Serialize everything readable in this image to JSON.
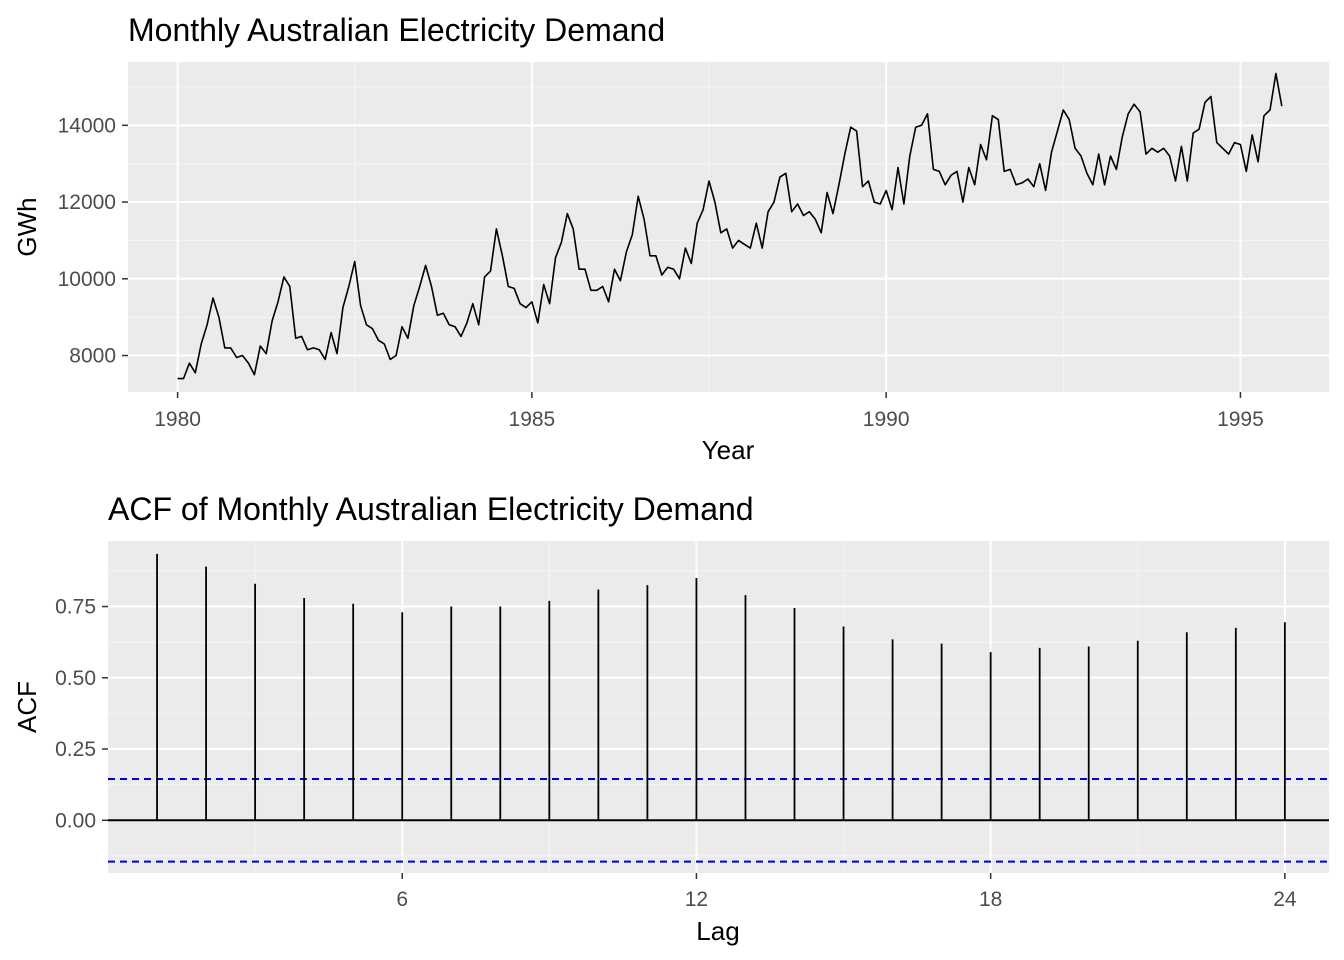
{
  "chart_data": [
    {
      "type": "line",
      "title": "Monthly Australian Electricity Demand",
      "xlabel": "Year",
      "ylabel": "GWh",
      "xlim": [
        1979.3,
        1996.25
      ],
      "ylim": [
        7050,
        15650
      ],
      "x_ticks": [
        1980,
        1985,
        1990,
        1995
      ],
      "x_tick_labels": [
        "1980",
        "1985",
        "1990",
        "1995"
      ],
      "y_ticks": [
        8000,
        10000,
        12000,
        14000
      ],
      "y_tick_labels": [
        "8000",
        "10000",
        "12000",
        "14000"
      ],
      "grid": true,
      "series": [
        {
          "start": 1980.0,
          "frequency": 12,
          "values": [
            7400,
            7400,
            7800,
            7550,
            8300,
            8800,
            9500,
            9000,
            8200,
            8200,
            7950,
            8000,
            7800,
            7500,
            8250,
            8050,
            8900,
            9400,
            10050,
            9800,
            8450,
            8500,
            8150,
            8200,
            8150,
            7900,
            8600,
            8050,
            9250,
            9800,
            10450,
            9300,
            8800,
            8700,
            8400,
            8300,
            7900,
            8000,
            8750,
            8450,
            9300,
            9800,
            10350,
            9800,
            9050,
            9100,
            8800,
            8750,
            8500,
            8850,
            9350,
            8800,
            10050,
            10200,
            11300,
            10600,
            9800,
            9750,
            9350,
            9250,
            9400,
            8850,
            9850,
            9350,
            10550,
            10950,
            11700,
            11300,
            10250,
            10250,
            9700,
            9700,
            9800,
            9400,
            10250,
            9950,
            10700,
            11150,
            12150,
            11550,
            10600,
            10600,
            10100,
            10300,
            10250,
            10000,
            10800,
            10400,
            11450,
            11800,
            12550,
            12000,
            11200,
            11300,
            10800,
            11000,
            10900,
            10800,
            11450,
            10800,
            11750,
            12000,
            12650,
            12750,
            11750,
            11950,
            11650,
            11750,
            11550,
            11200,
            12250,
            11700,
            12450,
            13250,
            13950,
            13850,
            12400,
            12550,
            12000,
            11950,
            12300,
            11800,
            12900,
            11950,
            13200,
            13950,
            14000,
            14300,
            12850,
            12800,
            12450,
            12700,
            12800,
            12000,
            12900,
            12450,
            13500,
            13100,
            14250,
            14150,
            12800,
            12850,
            12450,
            12500,
            12600,
            12400,
            13000,
            12300,
            13300,
            13850,
            14400,
            14150,
            13400,
            13200,
            12750,
            12450,
            13250,
            12450,
            13200,
            12850,
            13700,
            14300,
            14550,
            14350,
            13250,
            13400,
            13300,
            13400,
            13200,
            12550,
            13450,
            12550,
            13800,
            13900,
            14600,
            14750,
            13550,
            13400,
            13250,
            13550,
            13500,
            12800,
            13750,
            13050,
            14250,
            14400,
            15350,
            14500
          ]
        }
      ]
    },
    {
      "type": "bar",
      "title": "ACF of Monthly Australian Electricity Demand",
      "xlabel": "Lag",
      "ylabel": "ACF",
      "xlim": [
        0,
        24.9
      ],
      "ylim": [
        -0.185,
        0.98
      ],
      "x_ticks": [
        6,
        12,
        18,
        24
      ],
      "x_tick_labels": [
        "6",
        "12",
        "18",
        "24"
      ],
      "y_ticks": [
        0.0,
        0.25,
        0.5,
        0.75
      ],
      "y_tick_labels": [
        "0.00",
        "0.25",
        "0.50",
        "0.75"
      ],
      "grid": true,
      "lags": [
        1,
        2,
        3,
        4,
        5,
        6,
        7,
        8,
        9,
        10,
        11,
        12,
        13,
        14,
        15,
        16,
        17,
        18,
        19,
        20,
        21,
        22,
        23,
        24
      ],
      "values": [
        0.935,
        0.89,
        0.83,
        0.78,
        0.76,
        0.73,
        0.75,
        0.75,
        0.77,
        0.81,
        0.825,
        0.85,
        0.79,
        0.745,
        0.68,
        0.635,
        0.62,
        0.59,
        0.605,
        0.61,
        0.63,
        0.66,
        0.675,
        0.695
      ],
      "confidence_bound": 0.145,
      "confidence_color": "#0000cc"
    }
  ]
}
